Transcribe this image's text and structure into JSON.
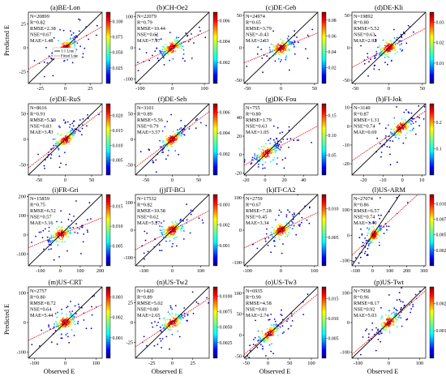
{
  "figure": {
    "ylabel": "Predicted E",
    "xlabel": "Observed E",
    "legend": {
      "one_to_one": "1:1 Line",
      "fitted": "Fitted Line"
    }
  },
  "colors": {
    "one_to_one_line": "#000000",
    "fitted_line": "#e8191c",
    "colormap": "jet"
  },
  "chart_data": [
    {
      "type": "scatter",
      "title": "(a)BE-Lon",
      "stats": [
        "N=20899",
        "R=0.82",
        "RMSE=2.38",
        "NSE=0.67",
        "MAE=1.48"
      ],
      "xlim": [
        -37,
        37
      ],
      "xticks": [
        -25,
        0,
        25
      ],
      "ylim": [
        -37,
        37
      ],
      "yticks": [
        -25,
        0,
        25
      ],
      "fit_slope": 0.6,
      "cbar_ticks": [
        "0.100",
        "0.075",
        "0.050",
        "0.025"
      ],
      "cbar_max": 0.115,
      "grid": false,
      "legend": "upper-left"
    },
    {
      "type": "scatter",
      "title": "(b)CH-Oe2",
      "stats": [
        "N=22079",
        "R=0.79",
        "RMSE=10.44",
        "NSE=0.62",
        "MAE=7.47"
      ],
      "xlim": [
        -115,
        115
      ],
      "xticks": [
        -100,
        0,
        100
      ],
      "ylim": [
        -115,
        115
      ],
      "yticks": [],
      "fit_slope": 0.5,
      "cbar_ticks": [
        "0.006",
        "0.004",
        "0.002"
      ],
      "cbar_max": 0.0068,
      "grid": false
    },
    {
      "type": "scatter",
      "title": "(c)DE-Geb",
      "stats": [
        "N=24974",
        "R=0.65",
        "RMSE=3.79",
        "NSE=-0.43",
        "MAE=2.03"
      ],
      "xlim": [
        -55,
        55
      ],
      "xticks": [
        -50,
        0,
        50
      ],
      "ylim": [
        -55,
        55
      ],
      "yticks": [],
      "fit_slope": 0.42,
      "cbar_ticks": [
        "0.08",
        "0.06",
        "0.04",
        "0.02"
      ],
      "cbar_max": 0.09,
      "grid": false
    },
    {
      "type": "scatter",
      "title": "(d)DE-Kli",
      "stats": [
        "N=19892",
        "R=0.80",
        "RMSE=5.52",
        "NSE=0.63",
        "MAE=2.92"
      ],
      "xlim": [
        -55,
        55
      ],
      "xticks": [
        -50,
        0,
        50
      ],
      "ylim": [
        -55,
        55
      ],
      "yticks": [],
      "fit_slope": 0.55,
      "cbar_ticks": [
        "0.03",
        "0.02",
        "0.01"
      ],
      "cbar_max": 0.035,
      "grid": false
    },
    {
      "type": "scatter",
      "title": "(e)DE-RuS",
      "stats": [
        "N=8616",
        "R=0.91",
        "RMSE=5.50",
        "NSE=0.83",
        "MAE=3.43"
      ],
      "xlim": [
        -70,
        70
      ],
      "xticks": [
        -50,
        0,
        50
      ],
      "ylim": [
        -70,
        70
      ],
      "yticks": [],
      "fit_slope": 0.8,
      "cbar_ticks": [
        "0.020",
        "0.015",
        "0.010",
        "0.005"
      ],
      "cbar_max": 0.024,
      "grid": false
    },
    {
      "type": "scatter",
      "title": "(f)DE-Seh",
      "stats": [
        "N=3101",
        "R=0.89",
        "RMSE=5.56",
        "NSE=0.79",
        "MAE=3.57"
      ],
      "xlim": [
        -70,
        70
      ],
      "xticks": [
        -50,
        0,
        50
      ],
      "ylim": [
        -70,
        70
      ],
      "yticks": [],
      "fit_slope": 0.78,
      "cbar_ticks": [
        "0.006",
        "0.004",
        "0.002"
      ],
      "cbar_max": 0.0068,
      "grid": false
    },
    {
      "type": "scatter",
      "title": "(g)DK-Fou",
      "stats": [
        "N=755",
        "R=0.80",
        "RMSE=1.79",
        "NSE=0.63",
        "MAE=1.05"
      ],
      "xlim": [
        -22,
        55
      ],
      "xticks": [
        -20,
        0,
        20,
        40
      ],
      "ylim": [
        -22,
        55
      ],
      "yticks": [],
      "fit_slope": 0.55,
      "cbar_ticks": [
        "0.15",
        "0.10",
        "0.05"
      ],
      "cbar_max": 0.18,
      "grid": false
    },
    {
      "type": "scatter",
      "title": "(h)FI-Jok",
      "stats": [
        "N=3149",
        "R=0.87",
        "RMSE=1.31",
        "NSE=0.74",
        "MAE=0.69"
      ],
      "xlim": [
        -26,
        12
      ],
      "xticks": [
        -20,
        -10,
        0,
        10
      ],
      "ylim": [
        -26,
        12
      ],
      "yticks": [],
      "fit_slope": 0.7,
      "cbar_ticks": [
        "0.2",
        "0.1"
      ],
      "cbar_max": 0.27,
      "grid": false
    },
    {
      "type": "scatter",
      "title": "(i)FR-Gri",
      "stats": [
        "N=15859",
        "R=0.75",
        "RMSE=6.52",
        "NSE=0.57",
        "MAE=3.16"
      ],
      "xlim": [
        -160,
        210
      ],
      "xticks": [
        -100,
        0,
        100,
        200
      ],
      "ylim": [
        -160,
        210
      ],
      "yticks": [],
      "fit_slope": 0.42,
      "cbar_ticks": [
        "0.015",
        "0.010",
        "0.005"
      ],
      "cbar_max": 0.018,
      "grid": false
    },
    {
      "type": "scatter",
      "title": "(j)IT-BCi",
      "stats": [
        "N=17532",
        "R=0.82",
        "RMSE=10.58",
        "NSE=0.62",
        "MAE=5.27"
      ],
      "xlim": [
        -130,
        130
      ],
      "xticks": [
        -100,
        0,
        100
      ],
      "ylim": [
        -130,
        130
      ],
      "yticks": [],
      "fit_slope": 0.55,
      "cbar_ticks": [
        "0.003",
        "0.002",
        "0.001"
      ],
      "cbar_max": 0.0035,
      "grid": false
    },
    {
      "type": "scatter",
      "title": "(k)IT-CA2",
      "stats": [
        "N=2759",
        "R=0.67",
        "RMSE=7.28",
        "NSE=0.45",
        "MAE=3.34"
      ],
      "xlim": [
        -110,
        110
      ],
      "xticks": [
        -100,
        0,
        100
      ],
      "ylim": [
        -110,
        110
      ],
      "yticks": [],
      "fit_slope": 0.5,
      "cbar_ticks": [
        "0.010",
        "0.005"
      ],
      "cbar_max": 0.0125,
      "grid": false
    },
    {
      "type": "scatter",
      "title": "(l)US-ARM",
      "stats": [
        "N=27074",
        "R=0.86",
        "RMSE=6.57",
        "NSE=0.74",
        "MAE=3.40"
      ],
      "xlim": [
        -120,
        310
      ],
      "xticks": [
        -100,
        0,
        100,
        200,
        300
      ],
      "ylim": [
        -120,
        160
      ],
      "yticks": [],
      "fit_slope": 0.62,
      "cbar_ticks": [
        "0.0100",
        "0.0075",
        "0.0050",
        "0.0025"
      ],
      "cbar_max": 0.0115,
      "grid": false
    },
    {
      "type": "scatter",
      "title": "(m)US-CRT",
      "stats": [
        "N=2757",
        "R=0.80",
        "RMSE=8.72",
        "NSE=0.64",
        "MAE=5.44"
      ],
      "xlim": [
        -120,
        120
      ],
      "xticks": [
        -100,
        0,
        100
      ],
      "ylim": [
        -120,
        120
      ],
      "yticks": [],
      "fit_slope": 0.5,
      "cbar_ticks": [
        "0.003",
        "0.002",
        "0.001"
      ],
      "cbar_max": 0.0035,
      "grid": false
    },
    {
      "type": "scatter",
      "title": "(n)US-Tw2",
      "stats": [
        "N=1420",
        "R=0.89",
        "RMSE=5.02",
        "NSE=0.80",
        "MAE=2.65"
      ],
      "xlim": [
        -45,
        45
      ],
      "xticks": [
        -25,
        0,
        25
      ],
      "ylim": [
        -45,
        45
      ],
      "yticks": [],
      "fit_slope": 0.68,
      "cbar_ticks": [
        "0.0100",
        "0.0075",
        "0.0050",
        "0.0025"
      ],
      "cbar_max": 0.0115,
      "grid": false
    },
    {
      "type": "scatter",
      "title": "(o)US-Tw3",
      "stats": [
        "N=6935",
        "R=0.90",
        "RMSE=4.58",
        "NSE=0.81",
        "MAE=2.74"
      ],
      "xlim": [
        -55,
        115
      ],
      "xticks": [
        -50,
        0,
        50,
        100
      ],
      "ylim": [
        -55,
        115
      ],
      "yticks": [],
      "fit_slope": 0.85,
      "cbar_ticks": [
        "0.015",
        "0.010",
        "0.005"
      ],
      "cbar_max": 0.018,
      "grid": false
    },
    {
      "type": "scatter",
      "title": "(p)US-Twt",
      "stats": [
        "N=7958",
        "R=0.96",
        "RMSE=8.17",
        "NSE=0.92",
        "MAE=5.03"
      ],
      "xlim": [
        -120,
        120
      ],
      "xticks": [
        -100,
        0,
        100
      ],
      "ylim": [
        -120,
        120
      ],
      "yticks": [],
      "fit_slope": 0.9,
      "cbar_ticks": [
        "0.002",
        "0.001"
      ],
      "cbar_max": 0.0026,
      "grid": false
    }
  ]
}
